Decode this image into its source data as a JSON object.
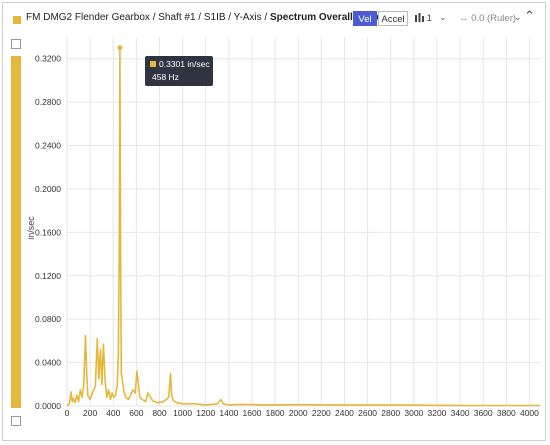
{
  "header": {
    "title_prefix": "FM DMG2 Flender Gearbox / Shaft #1 / S1IB / Y-Axis / ",
    "title_bold": "Spectrum Overall Velocity",
    "vel_label": "Vel",
    "accel_label": "Accel",
    "series_count": "1",
    "ruler_label": "0.0 (Ruler)"
  },
  "icons": {
    "series": "bar-chart-icon",
    "ruler": "double-arrow-icon",
    "chevron": "chevron-down-icon",
    "collapse": "caret-up-icon"
  },
  "colors": {
    "series": "#E5B83B",
    "accent": "#4a5bd4",
    "tooltip_bg": "#2f3440"
  },
  "tooltip": {
    "value": "0.3301 in/sec",
    "freq": "458 Hz"
  },
  "chart_data": {
    "type": "line",
    "ylabel": "in/sec",
    "xlabel": "",
    "xlim": [
      0,
      4100
    ],
    "ylim": [
      0,
      0.34
    ],
    "xticks": [
      0,
      200,
      400,
      600,
      800,
      1000,
      1200,
      1400,
      1600,
      1800,
      2000,
      2200,
      2400,
      2600,
      2800,
      3000,
      3200,
      3400,
      3600,
      3800,
      4000
    ],
    "yticks": [
      0.0,
      0.04,
      0.08,
      0.12,
      0.16,
      0.2,
      0.24,
      0.28,
      0.32
    ],
    "ytick_labels": [
      "0.0000",
      "0.0400",
      "0.0800",
      "0.1200",
      "0.1600",
      "0.2000",
      "0.2400",
      "0.2800",
      "0.3200"
    ],
    "grid": true,
    "series": [
      {
        "x": [
          0,
          20,
          35,
          45,
          55,
          70,
          85,
          100,
          115,
          130,
          145,
          150,
          160,
          170,
          180,
          200,
          220,
          245,
          262,
          275,
          290,
          302,
          315,
          330,
          345,
          360,
          375,
          390,
          405,
          420,
          435,
          445,
          452,
          458,
          464,
          470,
          480,
          495,
          510,
          530,
          550,
          570,
          590,
          605,
          618,
          630,
          650,
          680,
          700,
          740,
          780,
          830,
          860,
          880,
          895,
          905,
          920,
          950,
          1000,
          1100,
          1200,
          1300,
          1330,
          1350,
          1400,
          1500,
          1700,
          2000,
          2300,
          2600,
          2900,
          3200,
          3500,
          3800,
          4000,
          4090
        ],
        "y": [
          0.0,
          0.002,
          0.013,
          0.004,
          0.007,
          0.003,
          0.01,
          0.004,
          0.015,
          0.008,
          0.02,
          0.035,
          0.065,
          0.03,
          0.01,
          0.006,
          0.012,
          0.018,
          0.062,
          0.025,
          0.052,
          0.02,
          0.057,
          0.022,
          0.008,
          0.015,
          0.006,
          0.012,
          0.008,
          0.01,
          0.02,
          0.05,
          0.15,
          0.3301,
          0.14,
          0.03,
          0.023,
          0.012,
          0.008,
          0.006,
          0.01,
          0.015,
          0.012,
          0.032,
          0.02,
          0.008,
          0.006,
          0.004,
          0.012,
          0.005,
          0.003,
          0.004,
          0.006,
          0.008,
          0.03,
          0.01,
          0.005,
          0.003,
          0.002,
          0.002,
          0.001,
          0.002,
          0.006,
          0.002,
          0.001,
          0.0015,
          0.001,
          0.0012,
          0.001,
          0.0008,
          0.0008,
          0.0006,
          0.0005,
          0.0005,
          0.0005,
          0.0005
        ]
      }
    ]
  }
}
